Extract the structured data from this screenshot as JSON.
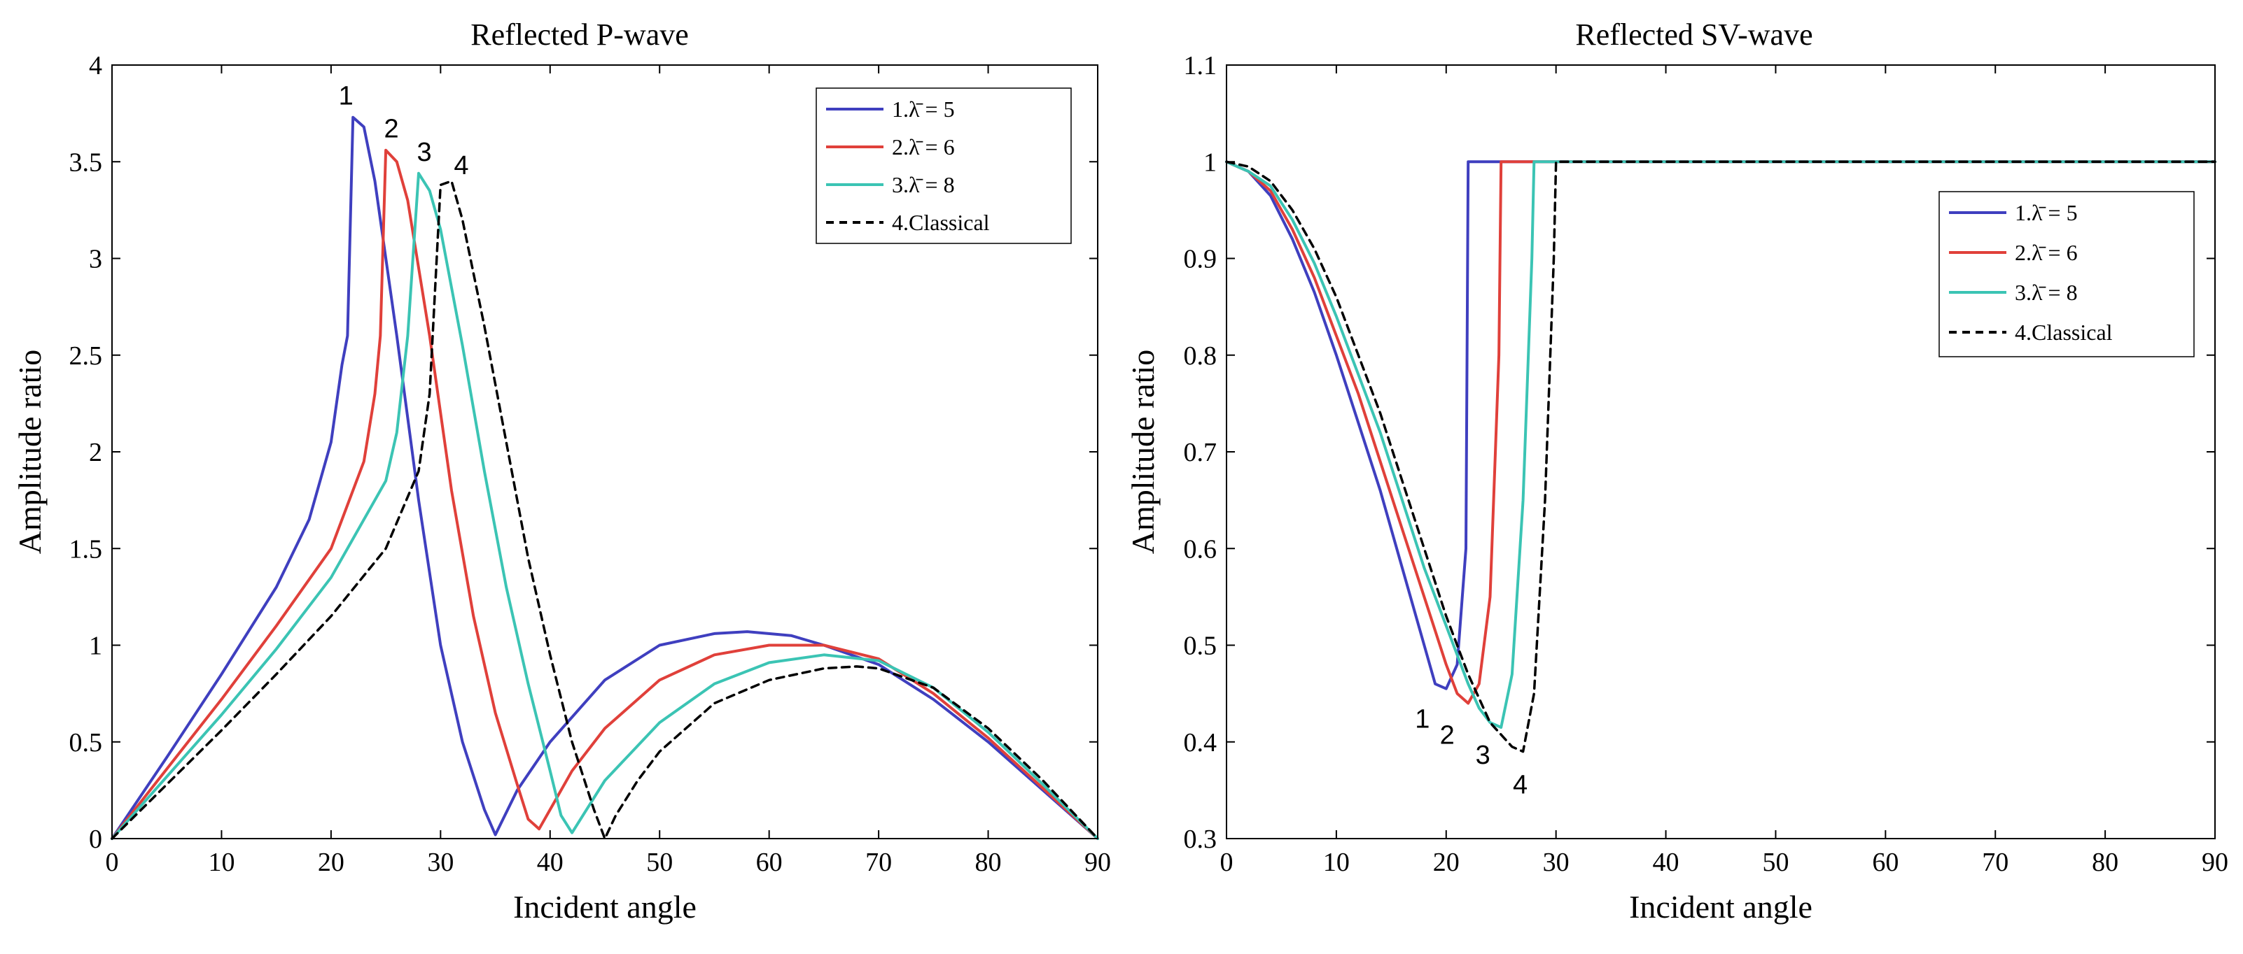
{
  "chart_data": [
    {
      "type": "line",
      "title": "Reflected P-wave",
      "xlabel": "Incident angle",
      "ylabel": "Amplitude ratio",
      "xlim": [
        0,
        90
      ],
      "ylim": [
        0,
        4
      ],
      "xticks": [
        0,
        10,
        20,
        30,
        40,
        50,
        60,
        70,
        80,
        90
      ],
      "yticks": [
        0,
        0.5,
        1,
        1.5,
        2,
        2.5,
        3,
        3.5,
        4
      ],
      "grid": false,
      "legend_position": "top-right",
      "series": [
        {
          "name": "1.λ̄ = 5",
          "color": "#3f3fbf",
          "dash": "solid",
          "curve_label": "1",
          "x": [
            0,
            5,
            10,
            15,
            18,
            20,
            21,
            21.5,
            22,
            23,
            24,
            26,
            28,
            30,
            32,
            34,
            35,
            37,
            40,
            45,
            50,
            55,
            58,
            62,
            65,
            70,
            75,
            80,
            85,
            90
          ],
          "y": [
            0,
            0.42,
            0.85,
            1.3,
            1.65,
            2.05,
            2.45,
            2.6,
            3.73,
            3.68,
            3.4,
            2.6,
            1.75,
            1.0,
            0.5,
            0.15,
            0.02,
            0.25,
            0.5,
            0.82,
            1.0,
            1.06,
            1.07,
            1.05,
            1.0,
            0.9,
            0.72,
            0.5,
            0.25,
            0
          ]
        },
        {
          "name": "2.λ̄ = 6",
          "color": "#e0403a",
          "dash": "solid",
          "curve_label": "2",
          "x": [
            0,
            5,
            10,
            15,
            20,
            23,
            24,
            24.5,
            25,
            26,
            27,
            29,
            31,
            33,
            35,
            37,
            38,
            39,
            40,
            42,
            45,
            50,
            55,
            60,
            65,
            70,
            75,
            80,
            85,
            90
          ],
          "y": [
            0,
            0.36,
            0.72,
            1.1,
            1.5,
            1.95,
            2.3,
            2.6,
            3.56,
            3.5,
            3.3,
            2.6,
            1.8,
            1.15,
            0.65,
            0.28,
            0.1,
            0.05,
            0.15,
            0.35,
            0.57,
            0.82,
            0.95,
            1.0,
            1.0,
            0.93,
            0.75,
            0.52,
            0.26,
            0
          ]
        },
        {
          "name": "3.λ̄ = 8",
          "color": "#3bc4b4",
          "dash": "solid",
          "curve_label": "3",
          "x": [
            0,
            5,
            10,
            15,
            20,
            25,
            26,
            27,
            28,
            29,
            30,
            32,
            34,
            36,
            38,
            40,
            41,
            42,
            43,
            45,
            50,
            55,
            60,
            65,
            70,
            75,
            80,
            85,
            90
          ],
          "y": [
            0,
            0.32,
            0.64,
            0.98,
            1.35,
            1.85,
            2.1,
            2.6,
            3.44,
            3.35,
            3.15,
            2.55,
            1.9,
            1.3,
            0.8,
            0.35,
            0.12,
            0.03,
            0.12,
            0.3,
            0.6,
            0.8,
            0.91,
            0.95,
            0.92,
            0.78,
            0.55,
            0.28,
            0
          ]
        },
        {
          "name": "4.Classical",
          "color": "#000000",
          "dash": "dashed",
          "curve_label": "4",
          "x": [
            0,
            5,
            10,
            15,
            20,
            25,
            28,
            29,
            30,
            31,
            32,
            34,
            36,
            38,
            40,
            42,
            44,
            45,
            46,
            48,
            50,
            55,
            60,
            65,
            68,
            70,
            75,
            80,
            85,
            90
          ],
          "y": [
            0,
            0.28,
            0.56,
            0.85,
            1.15,
            1.5,
            1.9,
            2.3,
            3.38,
            3.4,
            3.2,
            2.65,
            2.05,
            1.45,
            0.95,
            0.5,
            0.15,
            0,
            0.12,
            0.3,
            0.45,
            0.7,
            0.82,
            0.88,
            0.89,
            0.88,
            0.78,
            0.57,
            0.3,
            0
          ]
        }
      ]
    },
    {
      "type": "line",
      "title": "Reflected SV-wave",
      "xlabel": "Incident angle",
      "ylabel": "Amplitude ratio",
      "xlim": [
        0,
        90
      ],
      "ylim": [
        0.3,
        1.1
      ],
      "xticks": [
        0,
        10,
        20,
        30,
        40,
        50,
        60,
        70,
        80,
        90
      ],
      "yticks": [
        0.3,
        0.4,
        0.5,
        0.6,
        0.7,
        0.8,
        0.9,
        1,
        1.1
      ],
      "grid": false,
      "legend_position": "upper-right",
      "series": [
        {
          "name": "1.λ̄ = 5",
          "color": "#3f3fbf",
          "dash": "solid",
          "curve_label": "1",
          "x": [
            0,
            2,
            4,
            6,
            8,
            10,
            12,
            14,
            16,
            18,
            19,
            20,
            21,
            21.8,
            22,
            30,
            40,
            50,
            60,
            70,
            80,
            90
          ],
          "y": [
            1,
            0.99,
            0.965,
            0.92,
            0.865,
            0.8,
            0.73,
            0.66,
            0.58,
            0.5,
            0.46,
            0.455,
            0.48,
            0.6,
            1,
            1,
            1,
            1,
            1,
            1,
            1,
            1
          ]
        },
        {
          "name": "2.λ̄ = 6",
          "color": "#e0403a",
          "dash": "solid",
          "curve_label": "2",
          "x": [
            0,
            2,
            4,
            6,
            8,
            10,
            12,
            14,
            16,
            18,
            20,
            21,
            22,
            23,
            24,
            24.8,
            25,
            30,
            40,
            50,
            60,
            70,
            80,
            90
          ],
          "y": [
            1,
            0.99,
            0.97,
            0.93,
            0.88,
            0.82,
            0.76,
            0.69,
            0.62,
            0.55,
            0.48,
            0.45,
            0.44,
            0.46,
            0.55,
            0.8,
            1,
            1,
            1,
            1,
            1,
            1,
            1,
            1
          ]
        },
        {
          "name": "3.λ̄ = 8",
          "color": "#3bc4b4",
          "dash": "solid",
          "curve_label": "3",
          "x": [
            0,
            2,
            4,
            6,
            8,
            10,
            12,
            14,
            16,
            18,
            20,
            22,
            23,
            24,
            25,
            26,
            27,
            27.8,
            28,
            30,
            40,
            50,
            60,
            70,
            80,
            90
          ],
          "y": [
            1,
            0.99,
            0.975,
            0.94,
            0.895,
            0.84,
            0.78,
            0.72,
            0.65,
            0.58,
            0.52,
            0.46,
            0.435,
            0.42,
            0.415,
            0.47,
            0.65,
            0.9,
            1,
            1,
            1,
            1,
            1,
            1,
            1,
            1
          ]
        },
        {
          "name": "4.Classical",
          "color": "#000000",
          "dash": "dashed",
          "curve_label": "4",
          "x": [
            0,
            2,
            4,
            6,
            8,
            10,
            12,
            14,
            16,
            18,
            20,
            22,
            24,
            26,
            27,
            28,
            29,
            29.8,
            30,
            40,
            50,
            60,
            70,
            80,
            90
          ],
          "y": [
            1,
            0.995,
            0.98,
            0.95,
            0.91,
            0.86,
            0.8,
            0.74,
            0.67,
            0.6,
            0.53,
            0.47,
            0.42,
            0.395,
            0.39,
            0.45,
            0.65,
            0.9,
            1,
            1,
            1,
            1,
            1,
            1,
            1
          ]
        }
      ]
    }
  ]
}
